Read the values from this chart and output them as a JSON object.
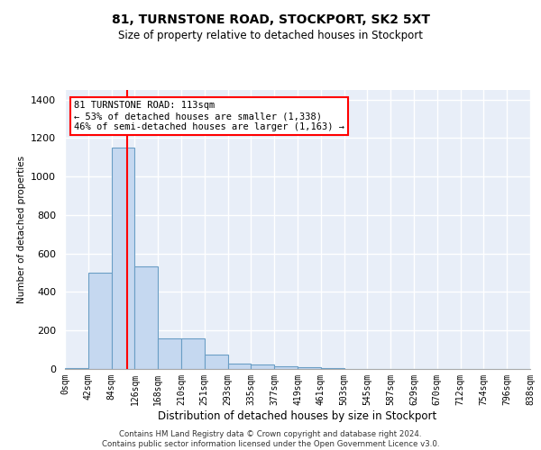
{
  "title": "81, TURNSTONE ROAD, STOCKPORT, SK2 5XT",
  "subtitle": "Size of property relative to detached houses in Stockport",
  "xlabel": "Distribution of detached houses by size in Stockport",
  "ylabel": "Number of detached properties",
  "bar_color": "#c5d8f0",
  "bar_edge_color": "#6a9ec5",
  "background_color": "#e8eef8",
  "grid_color": "#ffffff",
  "bins": [
    "0sqm",
    "42sqm",
    "84sqm",
    "126sqm",
    "168sqm",
    "210sqm",
    "251sqm",
    "293sqm",
    "335sqm",
    "377sqm",
    "419sqm",
    "461sqm",
    "503sqm",
    "545sqm",
    "587sqm",
    "629sqm",
    "670sqm",
    "712sqm",
    "754sqm",
    "796sqm",
    "838sqm"
  ],
  "values": [
    5,
    500,
    1150,
    535,
    160,
    160,
    75,
    30,
    25,
    15,
    10,
    5,
    2,
    1,
    1,
    0,
    0,
    0,
    0,
    0
  ],
  "property_line_x": 113,
  "bin_width": 42,
  "annotation_text": "81 TURNSTONE ROAD: 113sqm\n← 53% of detached houses are smaller (1,338)\n46% of semi-detached houses are larger (1,163) →",
  "annotation_box_color": "white",
  "annotation_box_edge": "red",
  "vline_color": "red",
  "ylim": [
    0,
    1450
  ],
  "yticks": [
    0,
    200,
    400,
    600,
    800,
    1000,
    1200,
    1400
  ],
  "footer_line1": "Contains HM Land Registry data © Crown copyright and database right 2024.",
  "footer_line2": "Contains public sector information licensed under the Open Government Licence v3.0."
}
